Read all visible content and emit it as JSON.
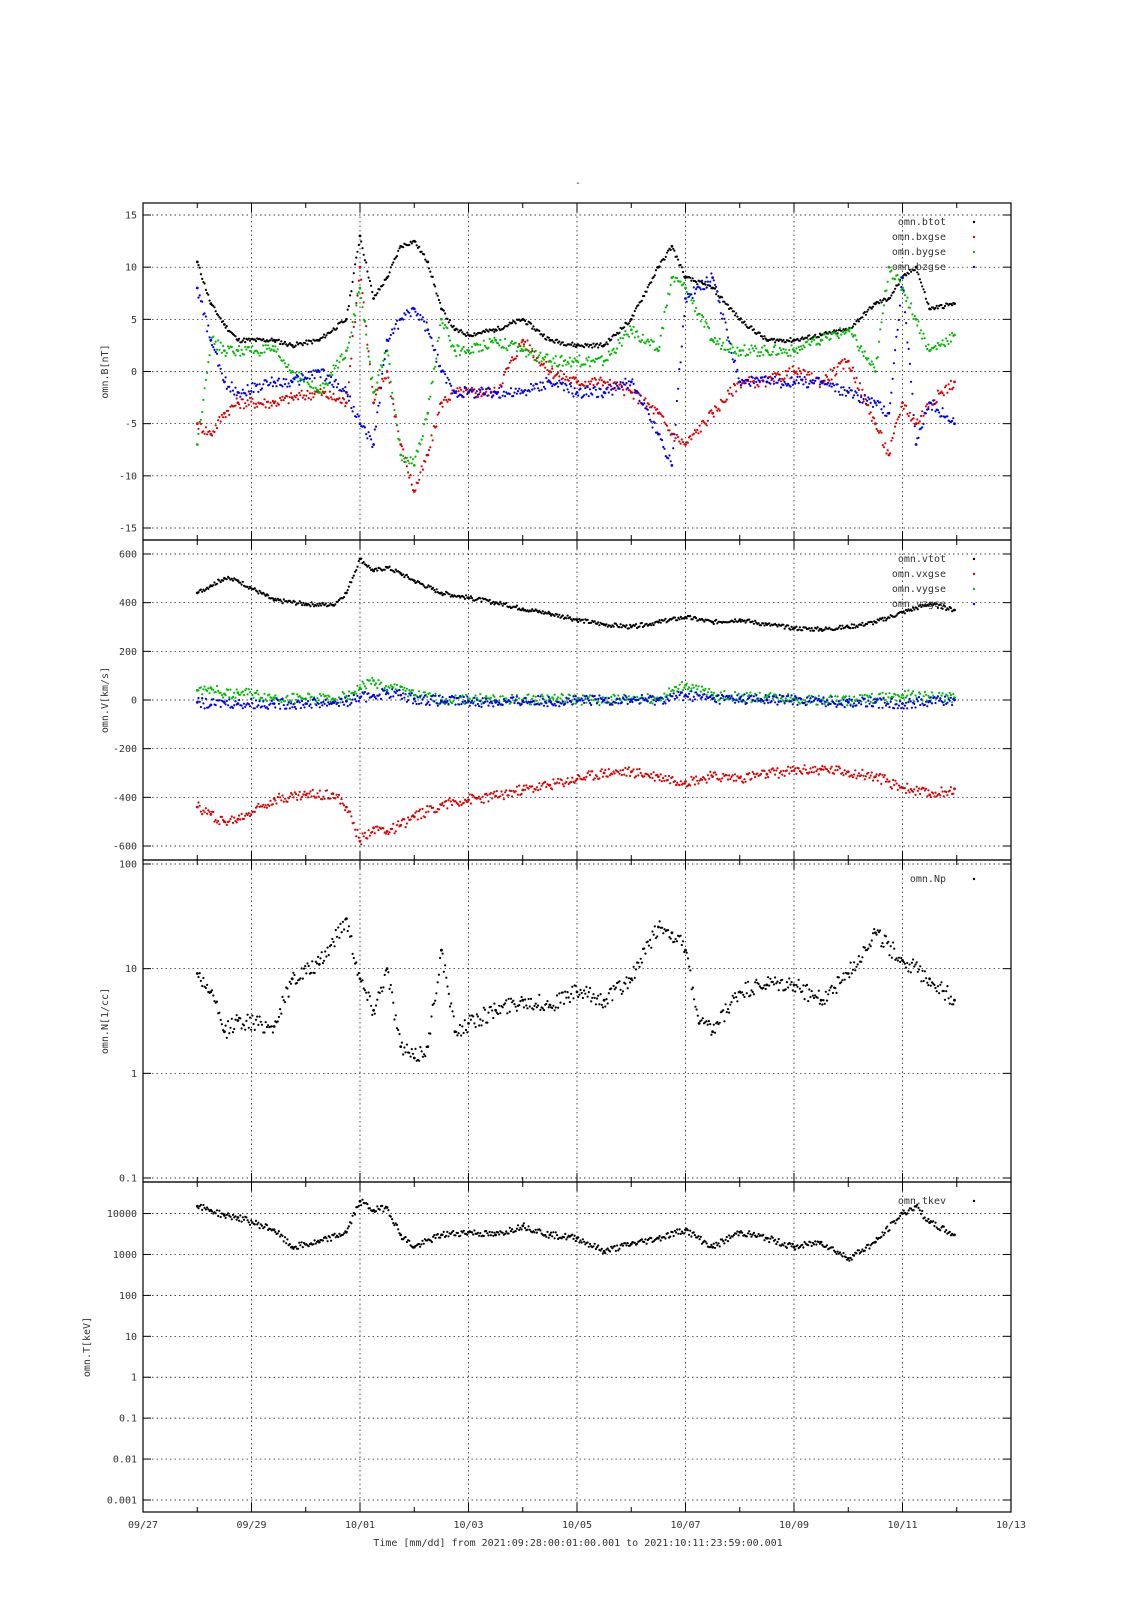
{
  "figure": {
    "title": "-",
    "xlabel": "Time [mm/dd]  from 2021:09:28:00:01:00.001  to  2021:10:11:23:59:00.001",
    "xticks": [
      "09/27",
      "09/29",
      "10/01",
      "10/03",
      "10/05",
      "10/07",
      "10/09",
      "10/11",
      "10/13"
    ],
    "colors": {
      "btot": "#000000",
      "bxgse": "#dd0000",
      "bygse": "#00bb00",
      "bzgse": "#0000ee"
    }
  },
  "chart_data": [
    {
      "type": "scatter",
      "ylabel": "omn.B[nT]",
      "ylim": [
        -15,
        15
      ],
      "yscale": "linear",
      "yticks": [
        "15",
        "10",
        "5",
        "0",
        "-5",
        "-10",
        "-15"
      ],
      "xlim_days_label": [
        "09/27",
        "10/13"
      ],
      "grid": true,
      "legend_position": "top-right",
      "series": [
        {
          "name": "omn.btot",
          "color": "#000000",
          "x": [
            "09/28 00:00",
            "09/28 06:00",
            "09/28 12:00",
            "09/28 18:00",
            "09/29 10:00",
            "09/29 18:00",
            "09/30 06:00",
            "09/30 18:00",
            "10/01 00:00",
            "10/01 06:00",
            "10/01 12:00",
            "10/01 18:00",
            "10/02 00:00",
            "10/02 06:00",
            "10/02 12:00",
            "10/02 18:00",
            "10/03 00:00",
            "10/03 12:00",
            "10/04 00:00",
            "10/04 12:00",
            "10/05 00:00",
            "10/05 12:00",
            "10/06 00:00",
            "10/06 12:00",
            "10/06 18:00",
            "10/07 00:00",
            "10/07 12:00",
            "10/08 00:00",
            "10/08 12:00",
            "10/09 00:00",
            "10/09 12:00",
            "10/10 00:00",
            "10/10 12:00",
            "10/10 18:00",
            "10/11 00:00",
            "10/11 06:00",
            "10/11 12:00",
            "10/11 23:00"
          ],
          "y": [
            10.5,
            6.5,
            4.5,
            3,
            3,
            2.5,
            3,
            5,
            13,
            7,
            9,
            12,
            12.5,
            10.5,
            6,
            4,
            3.5,
            4,
            5,
            3,
            2.5,
            2.5,
            5,
            10,
            12,
            9,
            8,
            5,
            3,
            3,
            3.5,
            4,
            6.5,
            7,
            9,
            10,
            6,
            6.5
          ]
        },
        {
          "name": "omn.bxgse",
          "color": "#dd0000",
          "x": [
            "09/28 00:00",
            "09/28 06:00",
            "09/28 12:00",
            "09/28 18:00",
            "09/29 10:00",
            "09/29 18:00",
            "09/30 06:00",
            "09/30 18:00",
            "10/01 00:00",
            "10/01 06:00",
            "10/01 12:00",
            "10/01 18:00",
            "10/02 00:00",
            "10/02 06:00",
            "10/02 12:00",
            "10/02 18:00",
            "10/03 00:00",
            "10/03 12:00",
            "10/04 00:00",
            "10/04 12:00",
            "10/05 00:00",
            "10/05 12:00",
            "10/06 00:00",
            "10/06 12:00",
            "10/06 18:00",
            "10/07 00:00",
            "10/07 12:00",
            "10/08 00:00",
            "10/08 12:00",
            "10/09 00:00",
            "10/09 12:00",
            "10/10 00:00",
            "10/10 12:00",
            "10/10 18:00",
            "10/11 00:00",
            "10/11 06:00",
            "10/11 12:00",
            "10/11 23:00"
          ],
          "y": [
            -5,
            -6,
            -4,
            -3,
            -3,
            -2.5,
            -2,
            -3,
            10,
            -3,
            0,
            -7,
            -11.5,
            -8,
            -3,
            -2,
            -2,
            -2,
            3,
            0,
            -1,
            -1,
            -2,
            -4,
            -6,
            -7,
            -4,
            -1,
            -1,
            0,
            -1,
            1,
            -5,
            -8,
            -3,
            -5,
            -3,
            -1
          ]
        },
        {
          "name": "omn.bygse",
          "color": "#00bb00",
          "x": [
            "09/28 00:00",
            "09/28 06:00",
            "09/28 12:00",
            "09/28 18:00",
            "09/29 10:00",
            "09/29 18:00",
            "09/30 06:00",
            "09/30 18:00",
            "10/01 00:00",
            "10/01 06:00",
            "10/01 12:00",
            "10/01 18:00",
            "10/02 00:00",
            "10/02 06:00",
            "10/02 12:00",
            "10/02 18:00",
            "10/03 00:00",
            "10/03 12:00",
            "10/04 00:00",
            "10/04 12:00",
            "10/05 00:00",
            "10/05 12:00",
            "10/06 00:00",
            "10/06 12:00",
            "10/06 18:00",
            "10/07 00:00",
            "10/07 12:00",
            "10/08 00:00",
            "10/08 12:00",
            "10/09 00:00",
            "10/09 12:00",
            "10/10 00:00",
            "10/10 12:00",
            "10/10 18:00",
            "10/11 00:00",
            "10/11 06:00",
            "10/11 12:00",
            "10/11 23:00"
          ],
          "y": [
            -7,
            3,
            2,
            2,
            2,
            0,
            -2,
            2,
            8,
            -2,
            2,
            -8,
            -9,
            -4,
            5,
            2,
            2,
            3,
            2,
            1,
            1,
            1,
            4,
            2,
            9,
            8,
            3,
            2,
            2,
            2,
            3,
            4,
            0,
            10,
            8,
            5,
            2,
            3.5
          ]
        },
        {
          "name": "omn.bzgse",
          "color": "#0000ee",
          "x": [
            "09/28 00:00",
            "09/28 06:00",
            "09/28 12:00",
            "09/28 18:00",
            "09/29 10:00",
            "09/29 18:00",
            "09/30 06:00",
            "09/30 18:00",
            "10/01 00:00",
            "10/01 06:00",
            "10/01 12:00",
            "10/01 18:00",
            "10/02 00:00",
            "10/02 06:00",
            "10/02 12:00",
            "10/02 18:00",
            "10/03 00:00",
            "10/03 12:00",
            "10/04 00:00",
            "10/04 12:00",
            "10/05 00:00",
            "10/05 12:00",
            "10/06 00:00",
            "10/06 12:00",
            "10/06 18:00",
            "10/07 00:00",
            "10/07 12:00",
            "10/08 00:00",
            "10/08 12:00",
            "10/09 00:00",
            "10/09 12:00",
            "10/10 00:00",
            "10/10 12:00",
            "10/10 18:00",
            "10/11 00:00",
            "10/11 06:00",
            "10/11 12:00",
            "10/11 23:00"
          ],
          "y": [
            8,
            3,
            -1,
            -2,
            -1,
            -1,
            0,
            -2,
            -5,
            -7,
            3,
            5,
            6,
            4,
            0,
            -2,
            -2,
            -2,
            -2,
            -1,
            -2,
            -2,
            -1,
            -6,
            -9,
            7,
            9,
            -1,
            -1,
            -1,
            -1,
            -2,
            -3,
            -4,
            9,
            -7,
            -3,
            -5
          ]
        }
      ]
    },
    {
      "type": "scatter",
      "ylabel": "omn.V[km/s]",
      "ylim": [
        -600,
        600
      ],
      "yscale": "linear",
      "yticks": [
        "600",
        "400",
        "200",
        "0",
        "-200",
        "-400",
        "-600"
      ],
      "grid": true,
      "legend_position": "top-right",
      "series": [
        {
          "name": "omn.vtot",
          "color": "#000000",
          "x": [
            "09/28 00:00",
            "09/28 06:00",
            "09/28 12:00",
            "09/28 18:00",
            "09/29 10:00",
            "09/30 00:00",
            "09/30 12:00",
            "09/30 18:00",
            "10/01 00:00",
            "10/01 06:00",
            "10/01 12:00",
            "10/01 18:00",
            "10/02 00:00",
            "10/02 12:00",
            "10/03 00:00",
            "10/03 12:00",
            "10/04 00:00",
            "10/04 12:00",
            "10/05 00:00",
            "10/05 12:00",
            "10/06 00:00",
            "10/06 12:00",
            "10/07 00:00",
            "10/07 12:00",
            "10/08 00:00",
            "10/08 12:00",
            "10/09 00:00",
            "10/09 12:00",
            "10/10 00:00",
            "10/10 12:00",
            "10/11 00:00",
            "10/11 12:00",
            "10/11 23:00"
          ],
          "y": [
            440,
            470,
            500,
            490,
            410,
            395,
            390,
            440,
            580,
            530,
            545,
            520,
            490,
            440,
            420,
            400,
            375,
            355,
            330,
            310,
            300,
            320,
            340,
            320,
            330,
            310,
            295,
            290,
            300,
            320,
            360,
            395,
            370
          ]
        },
        {
          "name": "omn.vxgse",
          "color": "#dd0000",
          "x": [
            "09/28 00:00",
            "09/28 06:00",
            "09/28 12:00",
            "09/28 18:00",
            "09/29 10:00",
            "09/30 00:00",
            "09/30 12:00",
            "09/30 18:00",
            "10/01 00:00",
            "10/01 06:00",
            "10/01 12:00",
            "10/01 18:00",
            "10/02 00:00",
            "10/02 12:00",
            "10/03 00:00",
            "10/03 12:00",
            "10/04 00:00",
            "10/04 12:00",
            "10/05 00:00",
            "10/05 12:00",
            "10/06 00:00",
            "10/06 12:00",
            "10/07 00:00",
            "10/07 12:00",
            "10/08 00:00",
            "10/08 12:00",
            "10/09 00:00",
            "10/09 12:00",
            "10/10 00:00",
            "10/10 12:00",
            "10/11 00:00",
            "10/11 12:00",
            "10/11 23:00"
          ],
          "y": [
            -440,
            -470,
            -500,
            -490,
            -405,
            -390,
            -385,
            -440,
            -580,
            -525,
            -540,
            -515,
            -480,
            -430,
            -410,
            -395,
            -370,
            -350,
            -325,
            -300,
            -295,
            -315,
            -335,
            -315,
            -320,
            -305,
            -290,
            -285,
            -295,
            -315,
            -360,
            -390,
            -365
          ]
        },
        {
          "name": "omn.vygse",
          "color": "#00bb00",
          "x": [
            "09/28 00:00",
            "09/28 06:00",
            "09/28 12:00",
            "09/28 18:00",
            "09/29 10:00",
            "09/30 00:00",
            "09/30 12:00",
            "09/30 18:00",
            "10/01 00:00",
            "10/01 06:00",
            "10/01 12:00",
            "10/01 18:00",
            "10/02 00:00",
            "10/02 12:00",
            "10/03 00:00",
            "10/03 12:00",
            "10/04 00:00",
            "10/04 12:00",
            "10/05 00:00",
            "10/05 12:00",
            "10/06 00:00",
            "10/06 12:00",
            "10/07 00:00",
            "10/07 12:00",
            "10/08 00:00",
            "10/08 12:00",
            "10/09 00:00",
            "10/09 12:00",
            "10/10 00:00",
            "10/10 12:00",
            "10/11 00:00",
            "10/11 12:00",
            "10/11 23:00"
          ],
          "y": [
            40,
            50,
            25,
            30,
            10,
            5,
            5,
            15,
            50,
            80,
            40,
            55,
            20,
            0,
            5,
            0,
            0,
            5,
            0,
            0,
            5,
            5,
            60,
            20,
            10,
            10,
            5,
            0,
            -5,
            5,
            20,
            10,
            10
          ]
        },
        {
          "name": "omn.vzgse",
          "color": "#0000ee",
          "x": [
            "09/28 00:00",
            "09/28 06:00",
            "09/28 12:00",
            "09/28 18:00",
            "09/29 10:00",
            "09/30 00:00",
            "09/30 12:00",
            "09/30 18:00",
            "10/01 00:00",
            "10/01 06:00",
            "10/01 12:00",
            "10/01 18:00",
            "10/02 00:00",
            "10/02 12:00",
            "10/03 00:00",
            "10/03 12:00",
            "10/04 00:00",
            "10/04 12:00",
            "10/05 00:00",
            "10/05 12:00",
            "10/06 00:00",
            "10/06 12:00",
            "10/07 00:00",
            "10/07 12:00",
            "10/08 00:00",
            "10/08 12:00",
            "10/09 00:00",
            "10/09 12:00",
            "10/10 00:00",
            "10/10 12:00",
            "10/11 00:00",
            "10/11 12:00",
            "10/11 23:00"
          ],
          "y": [
            -10,
            -20,
            -10,
            -15,
            -15,
            -15,
            -10,
            -5,
            10,
            20,
            30,
            20,
            5,
            -5,
            -5,
            -10,
            -5,
            -5,
            -5,
            0,
            0,
            0,
            20,
            5,
            5,
            0,
            0,
            -5,
            -10,
            -10,
            -15,
            -5,
            0
          ]
        }
      ]
    },
    {
      "type": "scatter",
      "ylabel": "omn.N[1/cc]",
      "ylim": [
        0.1,
        100
      ],
      "yscale": "log",
      "yticks": [
        "100",
        "10",
        "1",
        "0.1"
      ],
      "grid": true,
      "legend_position": "top-right",
      "series": [
        {
          "name": "omn.Np",
          "color": "#000000",
          "x": [
            "09/28 00:00",
            "09/28 06:00",
            "09/28 12:00",
            "09/28 18:00",
            "09/29 10:00",
            "09/29 18:00",
            "09/30 06:00",
            "09/30 18:00",
            "10/01 00:00",
            "10/01 06:00",
            "10/01 12:00",
            "10/01 18:00",
            "10/02 00:00",
            "10/02 06:00",
            "10/02 12:00",
            "10/02 18:00",
            "10/03 00:00",
            "10/03 12:00",
            "10/04 00:00",
            "10/04 12:00",
            "10/05 00:00",
            "10/05 12:00",
            "10/06 00:00",
            "10/06 12:00",
            "10/06 18:00",
            "10/07 00:00",
            "10/07 06:00",
            "10/07 12:00",
            "10/08 00:00",
            "10/08 12:00",
            "10/09 00:00",
            "10/09 12:00",
            "10/10 00:00",
            "10/10 12:00",
            "10/11 00:00",
            "10/11 12:00",
            "10/11 23:00"
          ],
          "y": [
            9,
            6,
            2.5,
            3.2,
            2.8,
            8,
            11,
            30,
            8,
            4,
            10,
            1.8,
            1.4,
            1.8,
            15,
            2.5,
            3,
            4,
            5,
            4.5,
            6,
            5,
            8,
            25,
            22,
            15,
            3,
            2.5,
            6,
            7,
            7,
            5,
            9,
            22,
            12,
            8,
            5
          ]
        }
      ]
    },
    {
      "type": "scatter",
      "ylabel": "omn.T[keV]",
      "ylim": [
        0.001,
        30000
      ],
      "yscale": "log",
      "yticks": [
        "10000",
        "1000",
        "100",
        "10",
        "1",
        "0.1",
        "0.01",
        "0.001"
      ],
      "grid": true,
      "legend_position": "top-right",
      "series": [
        {
          "name": "omn.tkev",
          "color": "#000000",
          "x": [
            "09/28 00:00",
            "09/28 06:00",
            "09/28 12:00",
            "09/28 18:00",
            "09/29 10:00",
            "09/29 18:00",
            "09/30 06:00",
            "09/30 18:00",
            "10/01 00:00",
            "10/01 06:00",
            "10/01 12:00",
            "10/01 18:00",
            "10/02 00:00",
            "10/02 12:00",
            "10/03 00:00",
            "10/03 12:00",
            "10/04 00:00",
            "10/04 12:00",
            "10/05 00:00",
            "10/05 12:00",
            "10/06 00:00",
            "10/06 12:00",
            "10/07 00:00",
            "10/07 12:00",
            "10/08 00:00",
            "10/08 12:00",
            "10/09 00:00",
            "10/09 12:00",
            "10/10 00:00",
            "10/10 12:00",
            "10/11 00:00",
            "10/11 06:00",
            "10/11 12:00",
            "10/11 23:00"
          ],
          "y": [
            15000,
            12000,
            9000,
            8000,
            4000,
            1500,
            2000,
            3500,
            20000,
            12000,
            14000,
            3000,
            1500,
            3000,
            3500,
            3000,
            5000,
            3000,
            2500,
            1200,
            1800,
            2500,
            4000,
            1500,
            3500,
            2500,
            1500,
            2000,
            800,
            2000,
            10000,
            15000,
            6000,
            3000
          ]
        }
      ]
    }
  ]
}
